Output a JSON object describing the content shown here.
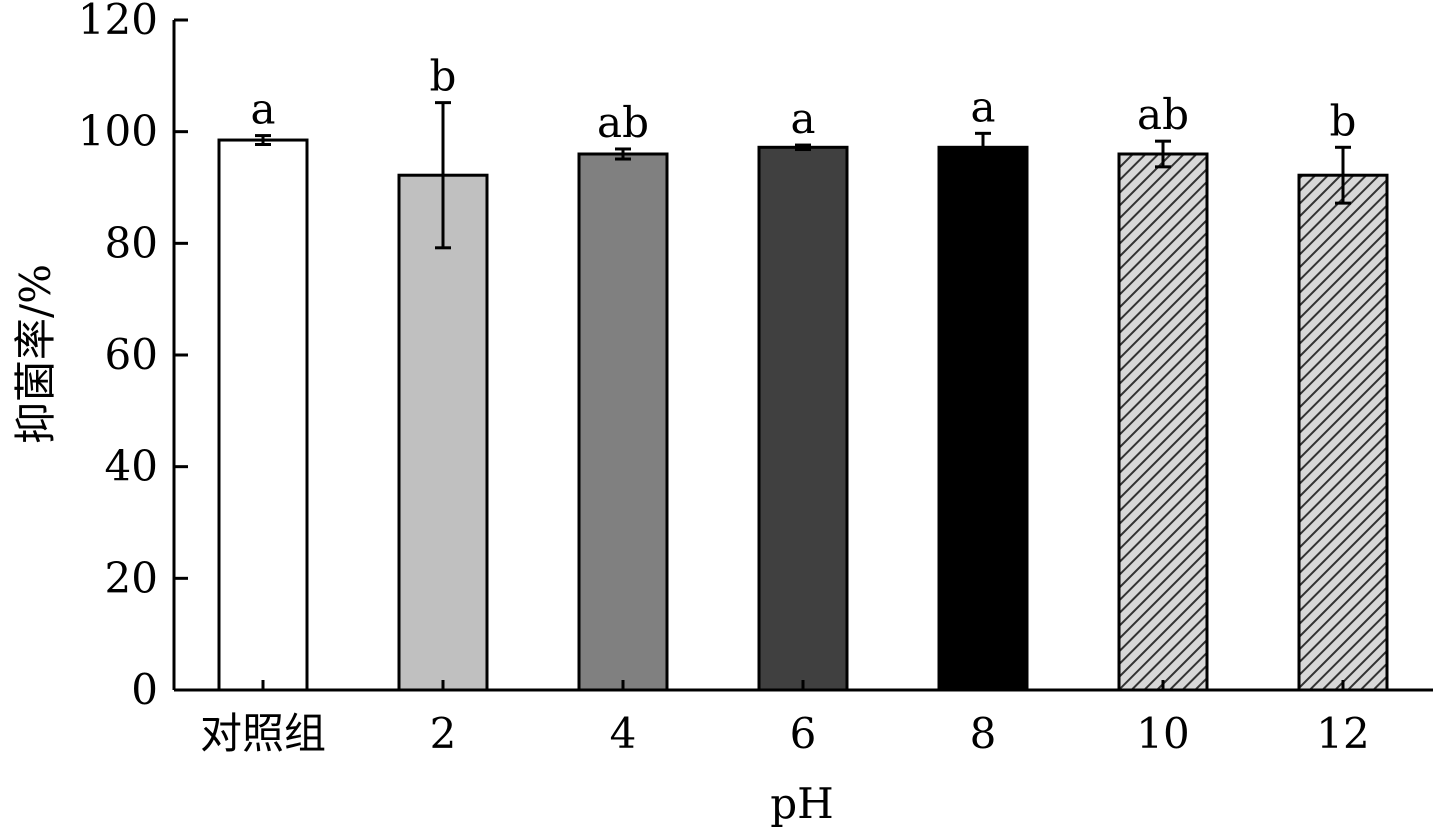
{
  "chart_data": {
    "type": "bar",
    "title": "",
    "xlabel": "pH",
    "ylabel": "抑菌率/%",
    "ylim": [
      0,
      120
    ],
    "yticks": [
      0,
      20,
      40,
      60,
      80,
      100,
      120
    ],
    "categories": [
      "对照组",
      "2",
      "4",
      "6",
      "8",
      "10",
      "12"
    ],
    "values": [
      98.5,
      92.2,
      96.0,
      97.2,
      97.2,
      96.0,
      92.2
    ],
    "errors": [
      0.8,
      13.0,
      0.9,
      0.4,
      2.5,
      2.3,
      5.0
    ],
    "significance": [
      "a",
      "b",
      "ab",
      "a",
      "a",
      "ab",
      "b"
    ],
    "fills": [
      "#ffffff",
      "#c0c0c0",
      "#808080",
      "#404040",
      "#000000",
      "hatch",
      "hatch"
    ],
    "grid": false,
    "legend": "none"
  }
}
